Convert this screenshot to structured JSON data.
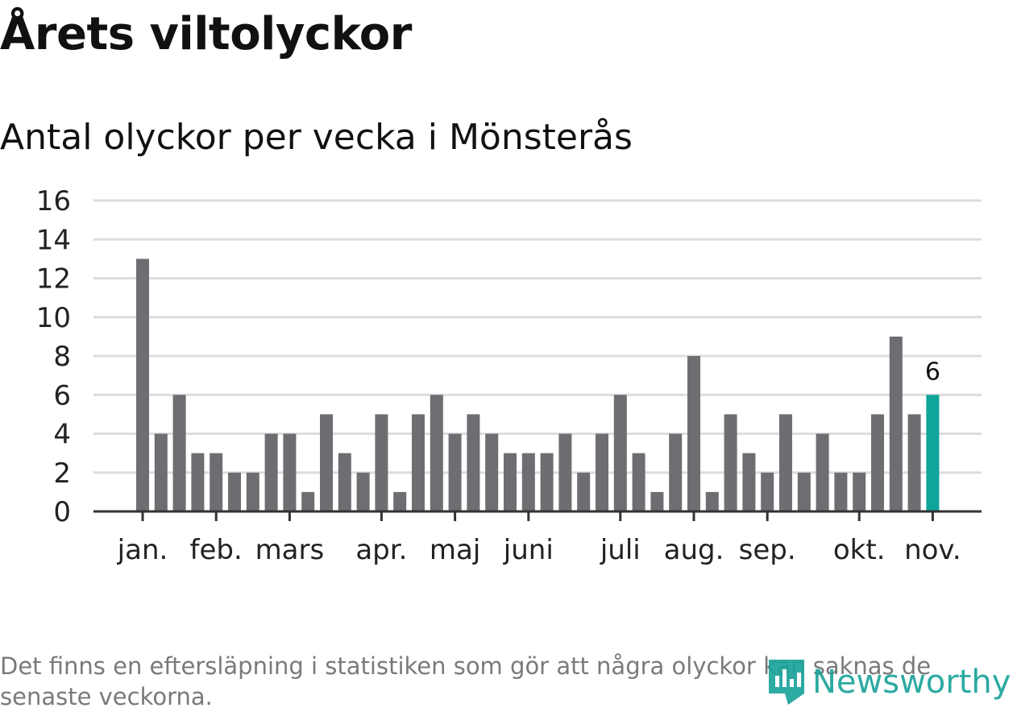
{
  "header": {
    "title": "Årets viltolyckor",
    "subtitle": "Antal olyckor per vecka i Mönsterås"
  },
  "chart_data": {
    "type": "bar",
    "title": "Årets viltolyckor",
    "subtitle": "Antal olyckor per vecka i Mönsterås",
    "xlabel": "",
    "ylabel": "",
    "ylim": [
      0,
      16
    ],
    "yticks": [
      0,
      2,
      4,
      6,
      8,
      10,
      12,
      14,
      16
    ],
    "grid": true,
    "weeks": [
      1,
      2,
      3,
      4,
      5,
      6,
      7,
      8,
      9,
      10,
      11,
      12,
      13,
      14,
      15,
      16,
      17,
      18,
      19,
      20,
      21,
      22,
      23,
      24,
      25,
      26,
      27,
      28,
      29,
      30,
      31,
      32,
      33,
      34,
      35,
      36,
      37,
      38,
      39,
      40,
      41,
      42,
      43,
      44
    ],
    "values": [
      13,
      4,
      6,
      3,
      3,
      2,
      2,
      4,
      4,
      1,
      5,
      3,
      2,
      5,
      1,
      5,
      6,
      4,
      5,
      4,
      3,
      3,
      3,
      4,
      2,
      4,
      6,
      3,
      1,
      4,
      8,
      1,
      5,
      3,
      2,
      5,
      2,
      4,
      2,
      2,
      5,
      9,
      5,
      6
    ],
    "month_labels": [
      {
        "label": "jan.",
        "bar_index": 0
      },
      {
        "label": "feb.",
        "bar_index": 4
      },
      {
        "label": "mars",
        "bar_index": 8
      },
      {
        "label": "apr.",
        "bar_index": 13
      },
      {
        "label": "maj",
        "bar_index": 17
      },
      {
        "label": "juni",
        "bar_index": 21
      },
      {
        "label": "juli",
        "bar_index": 26
      },
      {
        "label": "aug.",
        "bar_index": 30
      },
      {
        "label": "sep.",
        "bar_index": 34
      },
      {
        "label": "okt.",
        "bar_index": 39
      },
      {
        "label": "nov.",
        "bar_index": 43
      }
    ],
    "highlight_index": 43,
    "highlight_label": "6",
    "bar_color": "#6e6d72",
    "highlight_color": "#0ea59a",
    "grid_color": "#dddddd",
    "axis_color": "#333333"
  },
  "footer": {
    "note": "Det finns en eftersläpning i statistiken som gör att några olyckor kan saknas de senaste veckorna.",
    "brand": "Newsworthy",
    "brand_color": "#1ba39a"
  }
}
